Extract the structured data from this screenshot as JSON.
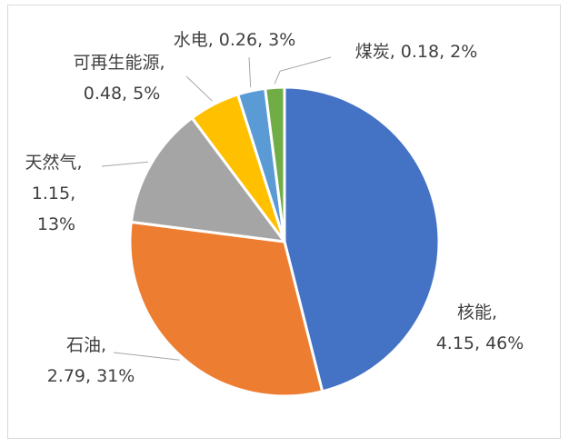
{
  "chart_data": {
    "type": "pie",
    "title": "",
    "slices": [
      {
        "name": "核能",
        "value": 4.15,
        "percent": "46%",
        "color": "#4472C4"
      },
      {
        "name": "石油",
        "value": 2.79,
        "percent": "31%",
        "color": "#ED7D31"
      },
      {
        "name": "天然气",
        "value": 1.15,
        "percent": "13%",
        "color": "#A5A5A5"
      },
      {
        "name": "可再生能源",
        "value": 0.48,
        "percent": "5%",
        "color": "#FFC000"
      },
      {
        "name": "水电",
        "value": 0.26,
        "percent": "3%",
        "color": "#5B9BD5"
      },
      {
        "name": "煤炭",
        "value": 0.18,
        "percent": "2%",
        "color": "#70AD47"
      }
    ],
    "labels": [
      {
        "lines": [
          "核能,",
          "4.15, 46%"
        ]
      },
      {
        "lines": [
          "石油,",
          "2.79, 31%"
        ]
      },
      {
        "lines": [
          "天然气,",
          "1.15,",
          "13%"
        ]
      },
      {
        "lines": [
          "可再生能源,",
          "0.48, 5%"
        ]
      },
      {
        "lines": [
          "水电, 0.26, 3%"
        ]
      },
      {
        "lines": [
          "煤炭, 0.18, 2%"
        ]
      }
    ]
  }
}
